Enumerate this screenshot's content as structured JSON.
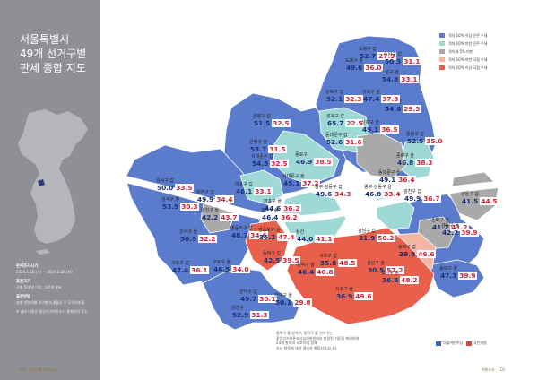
{
  "sidebar": {
    "title_lines": [
      "서울특별시",
      "49개 선거구별",
      "판세 종합 지도"
    ],
    "info": [
      {
        "heading": "판세조사시기",
        "text": "2024.1.28.(수) ~ 2024.2.28.(화)"
      },
      {
        "heading": "표본크기",
        "text": "구별 500명 이상, 고르게 분포"
      },
      {
        "heading": "표본방법",
        "text": "성별 연령대별 권역별 비례할당 후 무작위추출"
      },
      {
        "heading": "",
        "text": "※ 세부 내용은 중앙선거여론조사 홈페이지 참조"
      }
    ]
  },
  "legend": [
    {
      "label": "격차 10% 이상 민주 우세",
      "color": "#5b7ccc"
    },
    {
      "label": "격차 10% 미만 민주 우세",
      "color": "#9ed9d6"
    },
    {
      "label": "격차 4.5% 미만",
      "color": "#a9a9a9"
    },
    {
      "label": "격차 10% 미만 국힘 우세",
      "color": "#f4b6a4"
    },
    {
      "label": "격차 10% 이상 국힘 우세",
      "color": "#e8604c"
    }
  ],
  "note_lines": [
    "중복구 중 성석구, 동작구 을 선거구는",
    "중앙선거여론조사심의위원회의 판정된 기준을 제외하여",
    "24개 항목의 후보자의 성과",
    "조사 항목에 대한 결과가 취합되었습니다."
  ],
  "party_legend": [
    {
      "label": "더불어민주당",
      "color": "#3d5fbf"
    },
    {
      "label": "국민의힘",
      "color": "#e0453a"
    }
  ],
  "footer": {
    "left": "여론. 선거구별_판세조사",
    "right": "여론조사 · 101"
  },
  "districts": [
    {
      "name": "도봉구 갑",
      "a": "52.7",
      "b": "27.9"
    },
    {
      "name": "도봉구 을",
      "a": "49.6",
      "b": "36.0"
    },
    {
      "name": "노원구 갑",
      "a": "50.3",
      "b": "31.1"
    },
    {
      "name": "노원구 을",
      "a": "54.8",
      "b": "33.1"
    },
    {
      "name": "노원구 병",
      "a": "54.6",
      "b": "29.3"
    },
    {
      "name": "강북구 갑",
      "a": "52.1",
      "b": "32.3"
    },
    {
      "name": "강북구 을",
      "a": "47.4",
      "b": "37.3"
    },
    {
      "name": "성북구 갑",
      "a": "65.7",
      "b": "22.5"
    },
    {
      "name": "성북구 을",
      "a": "49.1",
      "b": "36.5"
    },
    {
      "name": "은평구 갑",
      "a": "51.5",
      "b": "32.5"
    },
    {
      "name": "은평구 을",
      "a": "53.7",
      "b": "31.5"
    },
    {
      "name": "종로구",
      "a": "46.9",
      "b": "38.5"
    },
    {
      "name": "동대문구 갑",
      "a": "52.6",
      "b": "31.6"
    },
    {
      "name": "중랑구 갑",
      "a": "52.5",
      "b": "35.0"
    },
    {
      "name": "중랑구 을",
      "a": "46.8",
      "b": "38.3"
    },
    {
      "name": "서대문구 갑",
      "a": "54.8",
      "b": "32.5"
    },
    {
      "name": "서대문구 을",
      "a": "45.1",
      "b": "37.2"
    },
    {
      "name": "동대문구 을",
      "a": "49.1",
      "b": "36.4"
    },
    {
      "name": "강서구 갑",
      "a": "50.0",
      "b": "33.5"
    },
    {
      "name": "마포구 갑",
      "a": "46.1",
      "b": "33.1"
    },
    {
      "name": "마포구 을",
      "a": "44.6",
      "b": "36.2"
    },
    {
      "name": "중구·성동구 갑",
      "a": "49.6",
      "b": "34.3"
    },
    {
      "name": "중구·성동구 을",
      "a": "46.8",
      "b": "33.4"
    },
    {
      "name": "광진구 갑",
      "a": "49.9",
      "b": "36.7"
    },
    {
      "name": "광진구 을",
      "a": "46.4",
      "b": "36.2"
    },
    {
      "name": "강동구 갑",
      "a": "41.5",
      "b": "44.5"
    },
    {
      "name": "강서구 병",
      "a": "53.9",
      "b": "30.3"
    },
    {
      "name": "양천구 갑",
      "a": "49.9",
      "b": "34.4"
    },
    {
      "name": "양천구 을",
      "a": "42.2",
      "b": "43.7"
    },
    {
      "name": "용산",
      "a": "44.0",
      "b": "41.1"
    },
    {
      "name": "영등포구 갑",
      "a": "48.7",
      "b": "34.6"
    },
    {
      "name": "강서구 을",
      "a": "50.9",
      "b": "32.2"
    },
    {
      "name": "영등포구 을",
      "a": "36.2",
      "b": "47.4"
    },
    {
      "name": "강남구 갑",
      "a": "31.9",
      "b": "50.2"
    },
    {
      "name": "송파구 갑",
      "a": "39.8",
      "b": "46.6"
    },
    {
      "name": "송파구 을",
      "a": "41.7",
      "b": "41.2"
    },
    {
      "name": "강동구 을",
      "a": "42.2",
      "b": "39.9"
    },
    {
      "name": "구로구 갑",
      "a": "47.4",
      "b": "36.1"
    },
    {
      "name": "구로구 을",
      "a": "46.5",
      "b": "34.0"
    },
    {
      "name": "동작구 갑",
      "a": "42.5",
      "b": "39.5"
    },
    {
      "name": "서초구 갑",
      "a": "35.8",
      "b": "48.5"
    },
    {
      "name": "동작구 을",
      "a": "46.4",
      "b": "40.8"
    },
    {
      "name": "강남구 을",
      "a": "30.5",
      "b": "57.2"
    },
    {
      "name": "강남구 병",
      "a": "36.8",
      "b": "48.2"
    },
    {
      "name": "송파구 병",
      "a": "47.3",
      "b": "39.9"
    },
    {
      "name": "관악구 갑",
      "a": "49.7",
      "b": "30.1"
    },
    {
      "name": "관악구 을",
      "a": "50.1",
      "b": "29.8"
    },
    {
      "name": "서초구 을",
      "a": "36.9",
      "b": "49.6"
    },
    {
      "name": "금천구",
      "a": "52.9",
      "b": "31.3"
    }
  ]
}
